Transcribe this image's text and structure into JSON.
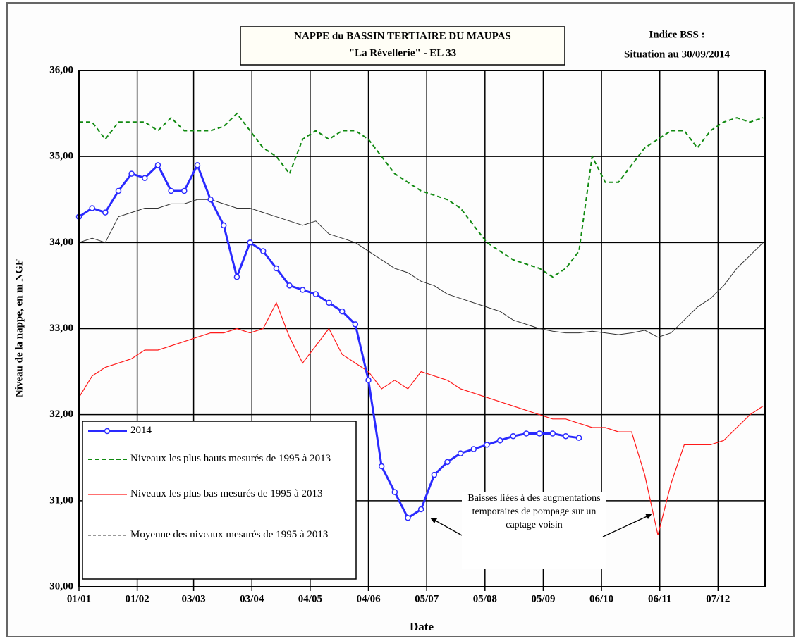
{
  "chart_data": {
    "type": "line",
    "title": "NAPPE du BASSIN TERTIAIRE DU MAUPAS",
    "subtitle": "\"La Révellerie\" - EL 33",
    "info_title": "Indice BSS :",
    "info_date": "Situation au 30/09/2014",
    "y_label": "Niveau de la nappe, en m NGF",
    "x_label": "Date",
    "annotation": "Baisses liées à des augmentations temporaires de pompage sur un captage voisin",
    "xlim": [
      1,
      366
    ],
    "xticks": [
      {
        "value": 1,
        "label": "01/01"
      },
      {
        "value": 32,
        "label": "01/02"
      },
      {
        "value": 62,
        "label": "03/03"
      },
      {
        "value": 93,
        "label": "03/04"
      },
      {
        "value": 124,
        "label": "04/05"
      },
      {
        "value": 155,
        "label": "04/06"
      },
      {
        "value": 186,
        "label": "05/07"
      },
      {
        "value": 217,
        "label": "05/08"
      },
      {
        "value": 248,
        "label": "05/09"
      },
      {
        "value": 279,
        "label": "06/10"
      },
      {
        "value": 310,
        "label": "06/11"
      },
      {
        "value": 341,
        "label": "07/12"
      }
    ],
    "ylim": [
      30,
      36
    ],
    "yticks": [
      {
        "value": 30,
        "label": "30,00"
      },
      {
        "value": 31,
        "label": "31,00"
      },
      {
        "value": 32,
        "label": "32,00"
      },
      {
        "value": 33,
        "label": "33,00"
      },
      {
        "value": 34,
        "label": "34,00"
      },
      {
        "value": 35,
        "label": "35,00"
      },
      {
        "value": 36,
        "label": "36,00"
      }
    ],
    "grid": true,
    "legend": "lower-left",
    "x": [
      1,
      8,
      15,
      22,
      29,
      36,
      43,
      50,
      57,
      64,
      71,
      78,
      85,
      92,
      99,
      106,
      113,
      120,
      127,
      134,
      141,
      148,
      155,
      162,
      169,
      176,
      183,
      190,
      197,
      204,
      211,
      218,
      225,
      232,
      239,
      246,
      253,
      260,
      267,
      274,
      281,
      288,
      295,
      302,
      309,
      316,
      323,
      330,
      337,
      344,
      351,
      358,
      365
    ],
    "series": [
      {
        "name": "2014",
        "color": "#2a2aff",
        "marker": "circle",
        "dash": false,
        "width": 3,
        "values": [
          34.3,
          34.4,
          34.35,
          34.6,
          34.8,
          34.75,
          34.9,
          34.6,
          34.6,
          34.9,
          34.5,
          34.2,
          33.6,
          34.0,
          33.9,
          33.7,
          33.5,
          33.45,
          33.4,
          33.3,
          33.2,
          33.05,
          32.4,
          31.4,
          31.1,
          30.8,
          30.9,
          31.3,
          31.45,
          31.55,
          31.6,
          31.65,
          31.7,
          31.75,
          31.78,
          31.78,
          31.78,
          31.75,
          31.73,
          null,
          null,
          null,
          null,
          null,
          null,
          null,
          null,
          null,
          null,
          null,
          null,
          null,
          null
        ]
      },
      {
        "name": "Niveaux les plus hauts mesurés de 1995 à 2013",
        "color": "#118a11",
        "marker": "none",
        "dash": true,
        "width": 2,
        "values": [
          35.4,
          35.4,
          35.2,
          35.4,
          35.4,
          35.4,
          35.3,
          35.45,
          35.3,
          35.3,
          35.3,
          35.35,
          35.5,
          35.3,
          35.1,
          35.0,
          34.8,
          35.2,
          35.3,
          35.2,
          35.3,
          35.3,
          35.2,
          35.0,
          34.8,
          34.7,
          34.6,
          34.55,
          34.5,
          34.4,
          34.2,
          34.0,
          33.9,
          33.8,
          33.75,
          33.7,
          33.6,
          33.7,
          33.9,
          35.0,
          34.7,
          34.7,
          34.9,
          35.1,
          35.2,
          35.3,
          35.3,
          35.1,
          35.3,
          35.4,
          35.45,
          35.4,
          35.45
        ]
      },
      {
        "name": "Niveaux les plus bas mesurés de 1995 à 2013",
        "color": "#ff1a1a",
        "marker": "none",
        "dash": false,
        "width": 1.2,
        "values": [
          32.2,
          32.45,
          32.55,
          32.6,
          32.65,
          32.75,
          32.75,
          32.8,
          32.85,
          32.9,
          32.95,
          32.95,
          33.0,
          32.95,
          33.0,
          33.3,
          32.9,
          32.6,
          32.8,
          33.0,
          32.7,
          32.6,
          32.5,
          32.3,
          32.4,
          32.3,
          32.5,
          32.45,
          32.4,
          32.3,
          32.25,
          32.2,
          32.15,
          32.1,
          32.05,
          32.0,
          31.95,
          31.95,
          31.9,
          31.85,
          31.85,
          31.8,
          31.8,
          31.3,
          30.6,
          31.2,
          31.65,
          31.65,
          31.65,
          31.7,
          31.85,
          32.0,
          32.1
        ]
      },
      {
        "name": "Moyenne des niveaux mesurés de 1995 à 2013",
        "color": "#333333",
        "marker": "none",
        "dash": false,
        "width": 1,
        "values": [
          34.0,
          34.05,
          34.0,
          34.3,
          34.35,
          34.4,
          34.4,
          34.45,
          34.45,
          34.5,
          34.5,
          34.45,
          34.4,
          34.4,
          34.35,
          34.3,
          34.25,
          34.2,
          34.25,
          34.1,
          34.05,
          34.0,
          33.9,
          33.8,
          33.7,
          33.65,
          33.55,
          33.5,
          33.4,
          33.35,
          33.3,
          33.25,
          33.2,
          33.1,
          33.05,
          33.0,
          32.97,
          32.95,
          32.95,
          32.97,
          32.95,
          32.93,
          32.95,
          32.98,
          32.9,
          32.95,
          33.1,
          33.25,
          33.35,
          33.5,
          33.7,
          33.85,
          34.0
        ]
      }
    ]
  }
}
